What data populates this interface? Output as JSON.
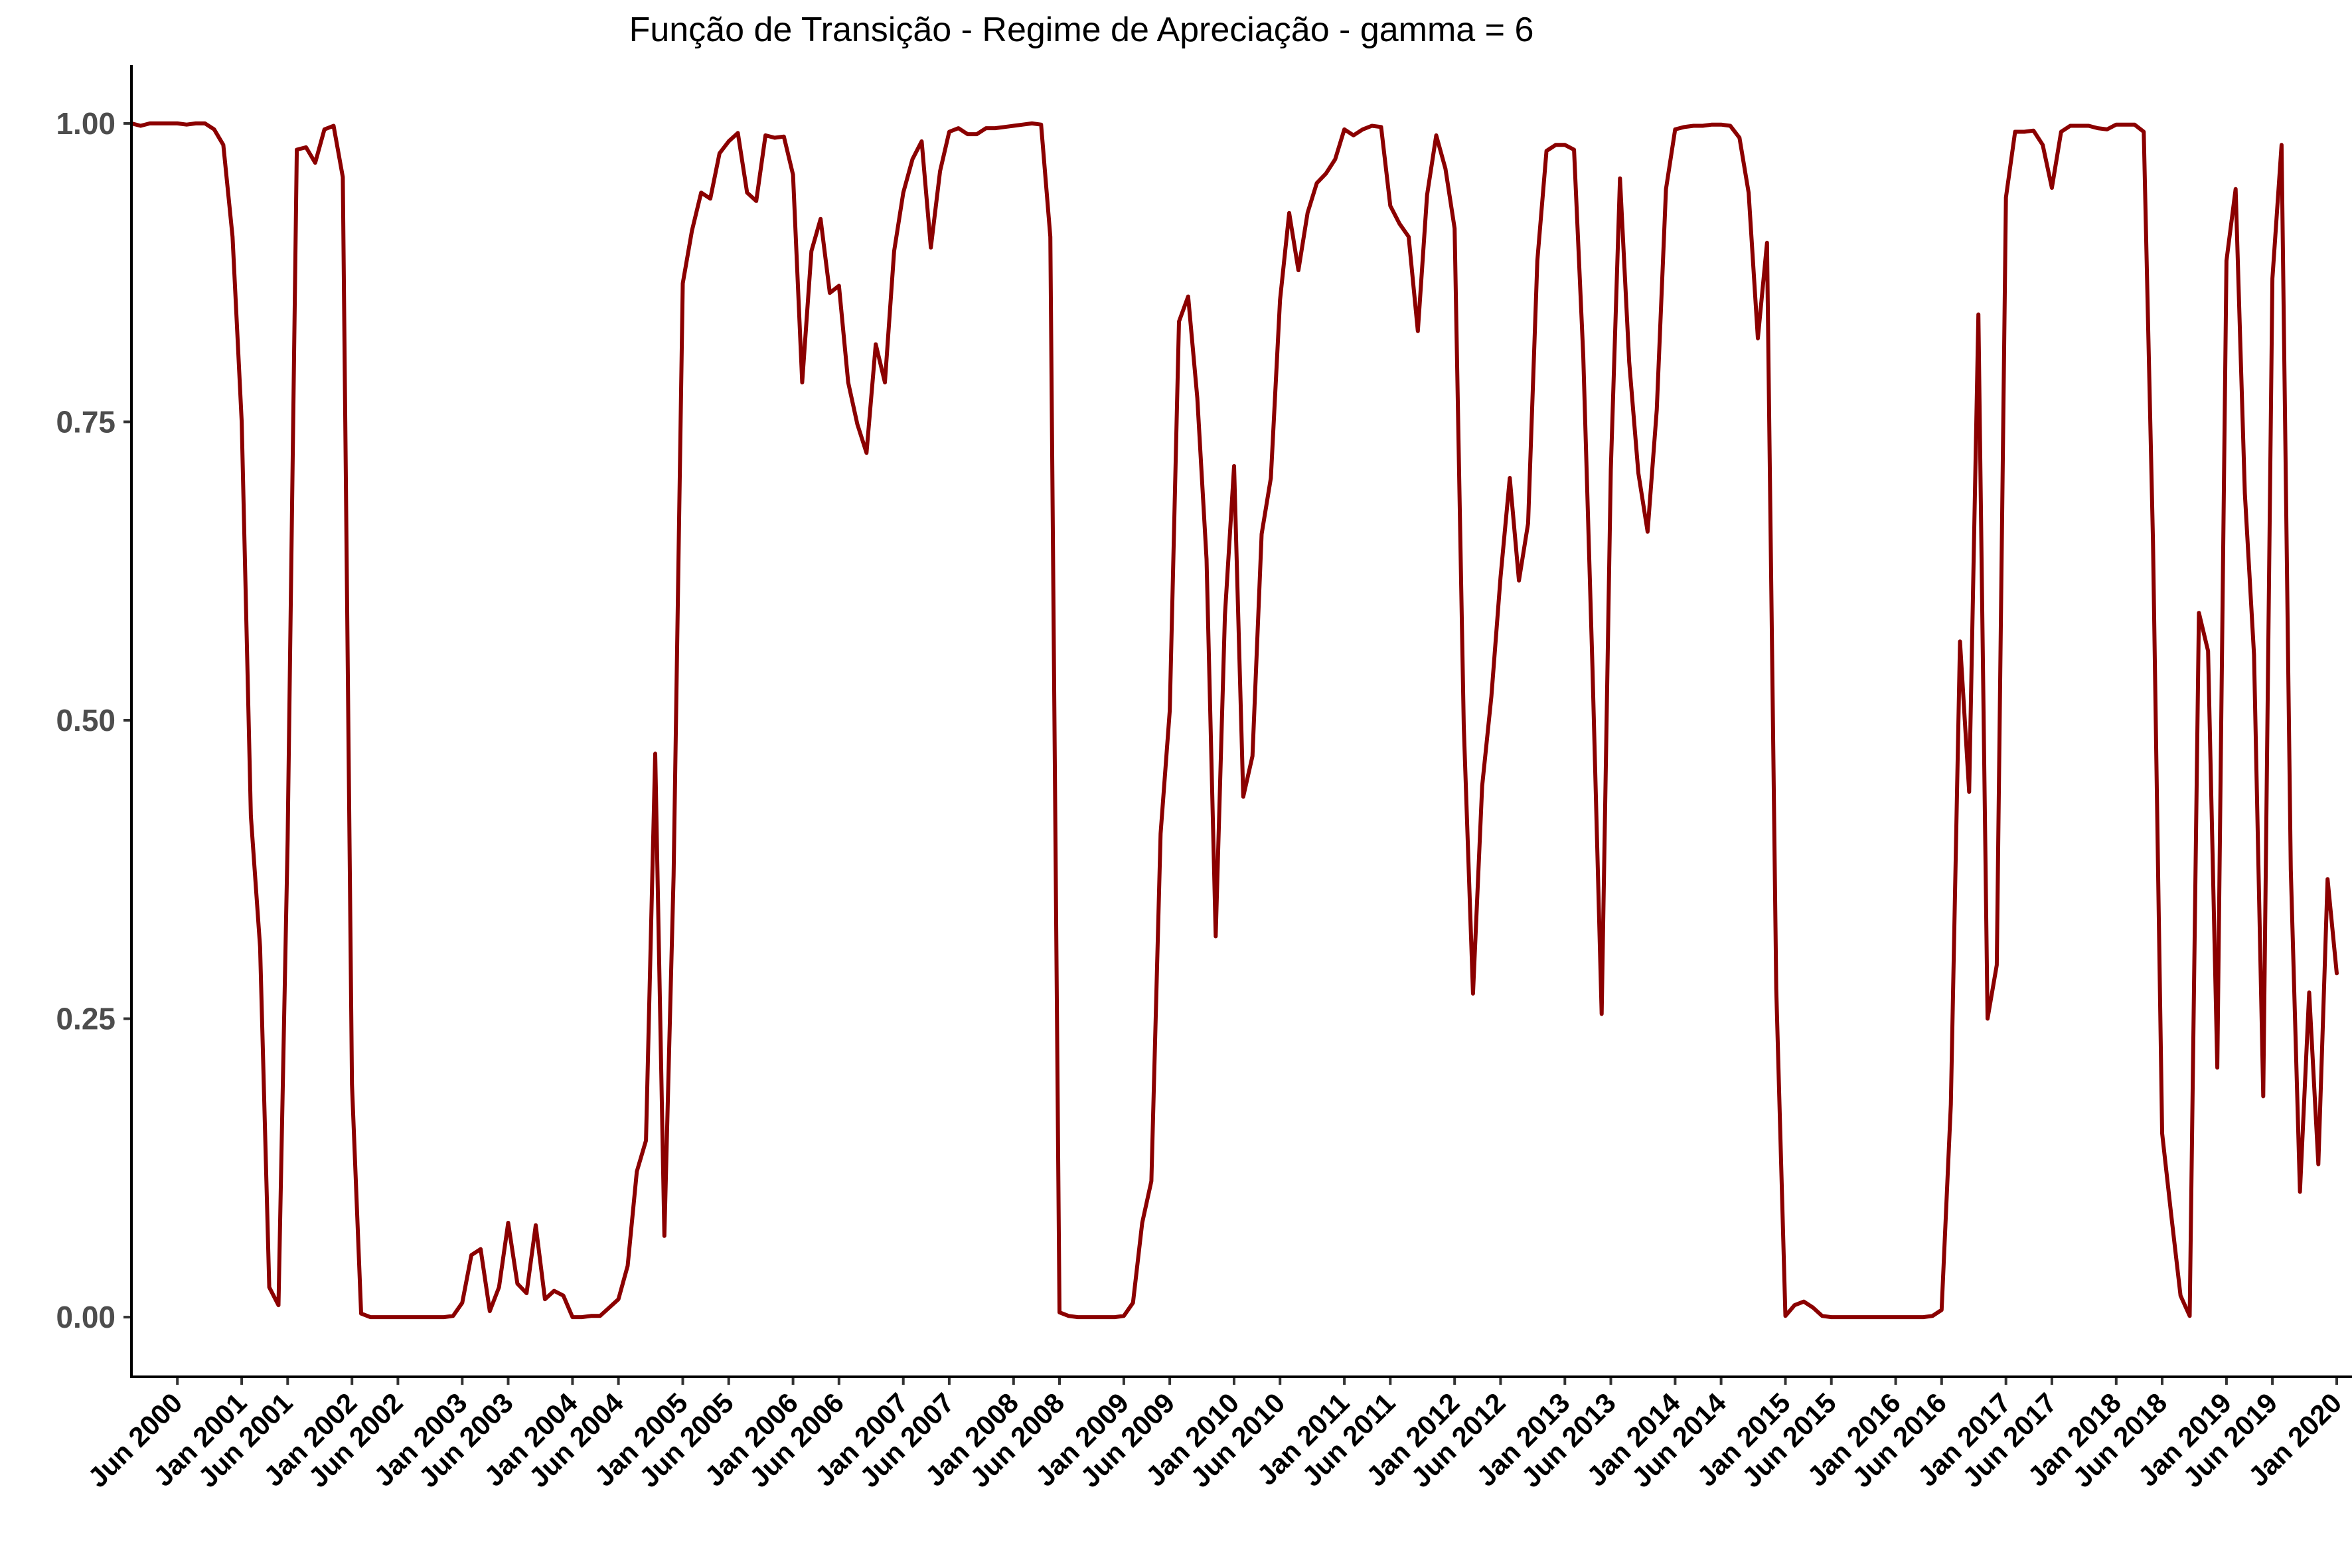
{
  "chart_data": {
    "type": "line",
    "title": "Função de Transição - Regime de Apreciação - gamma = 6",
    "xlabel": "",
    "ylabel": "",
    "x_start": "2000-01",
    "x_frequency": "monthly",
    "xlim": [
      "2000-01",
      "2020-01"
    ],
    "ylim": [
      -0.05,
      1.05
    ],
    "grid": false,
    "yticks": [
      {
        "value": 0.0,
        "label": "0.00"
      },
      {
        "value": 0.25,
        "label": "0.25"
      },
      {
        "value": 0.5,
        "label": "0.50"
      },
      {
        "value": 0.75,
        "label": "0.75"
      },
      {
        "value": 1.0,
        "label": "1.00"
      }
    ],
    "xticks": [
      {
        "date": "2000-06",
        "label": "Jun 2000"
      },
      {
        "date": "2001-01",
        "label": "Jan 2001"
      },
      {
        "date": "2001-06",
        "label": "Jun 2001"
      },
      {
        "date": "2002-01",
        "label": "Jan 2002"
      },
      {
        "date": "2002-06",
        "label": "Jun 2002"
      },
      {
        "date": "2003-01",
        "label": "Jan 2003"
      },
      {
        "date": "2003-06",
        "label": "Jun 2003"
      },
      {
        "date": "2004-01",
        "label": "Jan 2004"
      },
      {
        "date": "2004-06",
        "label": "Jun 2004"
      },
      {
        "date": "2005-01",
        "label": "Jan 2005"
      },
      {
        "date": "2005-06",
        "label": "Jun 2005"
      },
      {
        "date": "2006-01",
        "label": "Jan 2006"
      },
      {
        "date": "2006-06",
        "label": "Jun 2006"
      },
      {
        "date": "2007-01",
        "label": "Jan 2007"
      },
      {
        "date": "2007-06",
        "label": "Jun 2007"
      },
      {
        "date": "2008-01",
        "label": "Jan 2008"
      },
      {
        "date": "2008-06",
        "label": "Jun 2008"
      },
      {
        "date": "2009-01",
        "label": "Jan 2009"
      },
      {
        "date": "2009-06",
        "label": "Jun 2009"
      },
      {
        "date": "2010-01",
        "label": "Jan 2010"
      },
      {
        "date": "2010-06",
        "label": "Jun 2010"
      },
      {
        "date": "2011-01",
        "label": "Jan 2011"
      },
      {
        "date": "2011-06",
        "label": "Jun 2011"
      },
      {
        "date": "2012-01",
        "label": "Jan 2012"
      },
      {
        "date": "2012-06",
        "label": "Jun 2012"
      },
      {
        "date": "2013-01",
        "label": "Jan 2013"
      },
      {
        "date": "2013-06",
        "label": "Jun 2013"
      },
      {
        "date": "2014-01",
        "label": "Jan 2014"
      },
      {
        "date": "2014-06",
        "label": "Jun 2014"
      },
      {
        "date": "2015-01",
        "label": "Jan 2015"
      },
      {
        "date": "2015-06",
        "label": "Jun 2015"
      },
      {
        "date": "2016-01",
        "label": "Jan 2016"
      },
      {
        "date": "2016-06",
        "label": "Jun 2016"
      },
      {
        "date": "2017-01",
        "label": "Jan 2017"
      },
      {
        "date": "2017-06",
        "label": "Jun 2017"
      },
      {
        "date": "2018-01",
        "label": "Jan 2018"
      },
      {
        "date": "2018-06",
        "label": "Jun 2018"
      },
      {
        "date": "2019-01",
        "label": "Jan 2019"
      },
      {
        "date": "2019-06",
        "label": "Jun 2019"
      },
      {
        "date": "2020-01",
        "label": "Jan 2020"
      }
    ],
    "series": [
      {
        "color": "#8b0000",
        "values": [
          1.0,
          0.998,
          1.0,
          1.0,
          1.0,
          1.0,
          0.999,
          1.0,
          1.0,
          0.995,
          0.982,
          0.905,
          0.75,
          0.42,
          0.31,
          0.025,
          0.01,
          0.4,
          0.978,
          0.98,
          0.967,
          0.995,
          0.998,
          0.955,
          0.195,
          0.003,
          0.0,
          0.0,
          0.0,
          0.0,
          0.0,
          0.0,
          0.0,
          0.0,
          0.0,
          0.001,
          0.012,
          0.052,
          0.057,
          0.005,
          0.025,
          0.079,
          0.028,
          0.02,
          0.077,
          0.015,
          0.022,
          0.018,
          0.0,
          0.0,
          0.001,
          0.001,
          0.008,
          0.015,
          0.043,
          0.122,
          0.148,
          0.472,
          0.068,
          0.37,
          0.866,
          0.91,
          0.942,
          0.937,
          0.975,
          0.985,
          0.992,
          0.942,
          0.935,
          0.99,
          0.988,
          0.989,
          0.957,
          0.783,
          0.893,
          0.92,
          0.858,
          0.864,
          0.783,
          0.748,
          0.724,
          0.815,
          0.783,
          0.893,
          0.942,
          0.97,
          0.985,
          0.896,
          0.96,
          0.993,
          0.996,
          0.991,
          0.991,
          0.996,
          0.996,
          0.997,
          0.998,
          0.999,
          1.0,
          0.999,
          0.905,
          0.004,
          0.001,
          0.0,
          0.0,
          0.0,
          0.0,
          0.0,
          0.001,
          0.012,
          0.079,
          0.114,
          0.405,
          0.508,
          0.834,
          0.855,
          0.77,
          0.635,
          0.319,
          0.588,
          0.713,
          0.436,
          0.47,
          0.656,
          0.703,
          0.852,
          0.925,
          0.877,
          0.925,
          0.95,
          0.958,
          0.97,
          0.995,
          0.99,
          0.995,
          0.998,
          0.997,
          0.931,
          0.916,
          0.905,
          0.826,
          0.94,
          0.99,
          0.962,
          0.912,
          0.495,
          0.271,
          0.445,
          0.52,
          0.62,
          0.703,
          0.617,
          0.665,
          0.885,
          0.977,
          0.982,
          0.982,
          0.978,
          0.805,
          0.545,
          0.254,
          0.71,
          0.954,
          0.8,
          0.707,
          0.658,
          0.76,
          0.945,
          0.995,
          0.997,
          0.998,
          0.998,
          0.999,
          0.999,
          0.998,
          0.988,
          0.942,
          0.82,
          0.9,
          0.275,
          0.001,
          0.01,
          0.013,
          0.008,
          0.001,
          0.0,
          0.0,
          0.0,
          0.0,
          0.0,
          0.0,
          0.0,
          0.0,
          0.0,
          0.0,
          0.0,
          0.001,
          0.006,
          0.178,
          0.566,
          0.44,
          0.84,
          0.25,
          0.295,
          0.938,
          0.993,
          0.993,
          0.994,
          0.982,
          0.946,
          0.993,
          0.998,
          0.998,
          0.998,
          0.996,
          0.995,
          0.999,
          0.999,
          0.999,
          0.993,
          0.65,
          0.154,
          0.085,
          0.018,
          0.001,
          0.59,
          0.558,
          0.209,
          0.885,
          0.945,
          0.69,
          0.555,
          0.185,
          0.87,
          0.982,
          0.375,
          0.105,
          0.272,
          0.128,
          0.367,
          0.288
        ]
      }
    ]
  }
}
